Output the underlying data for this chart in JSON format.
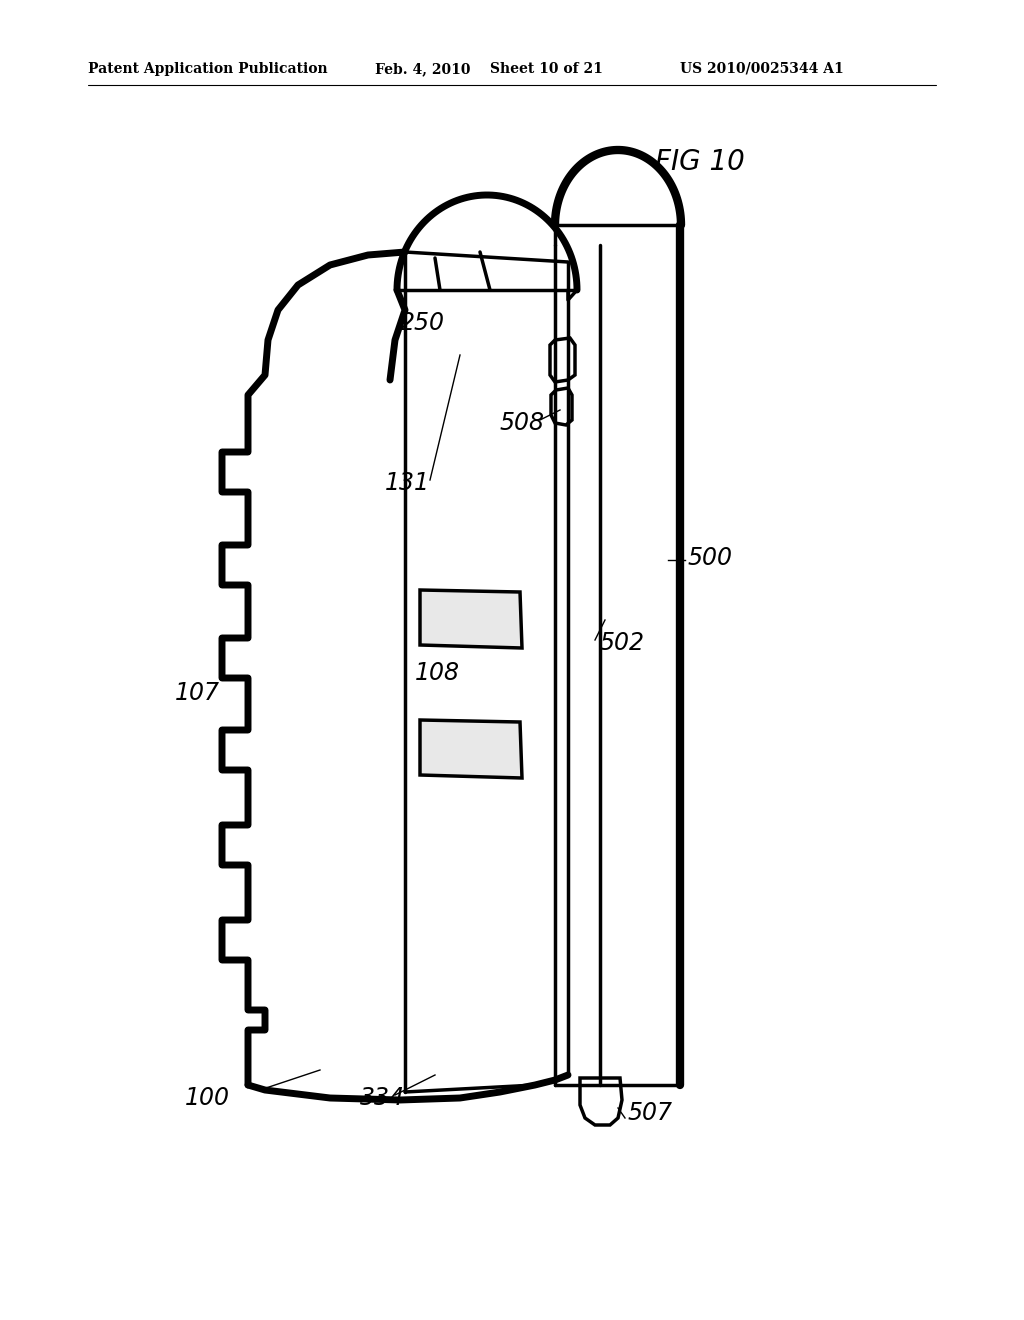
{
  "bg_color": "#ffffff",
  "header_text": "Patent Application Publication",
  "header_date": "Feb. 4, 2010",
  "header_sheet": "Sheet 10 of 21",
  "header_patent": "US 2010/0025344 A1",
  "fig_label": "FIG 10",
  "lw_heavy": 5.0,
  "lw_medium": 2.5,
  "lw_thin": 1.5,
  "lw_leader": 1.0
}
